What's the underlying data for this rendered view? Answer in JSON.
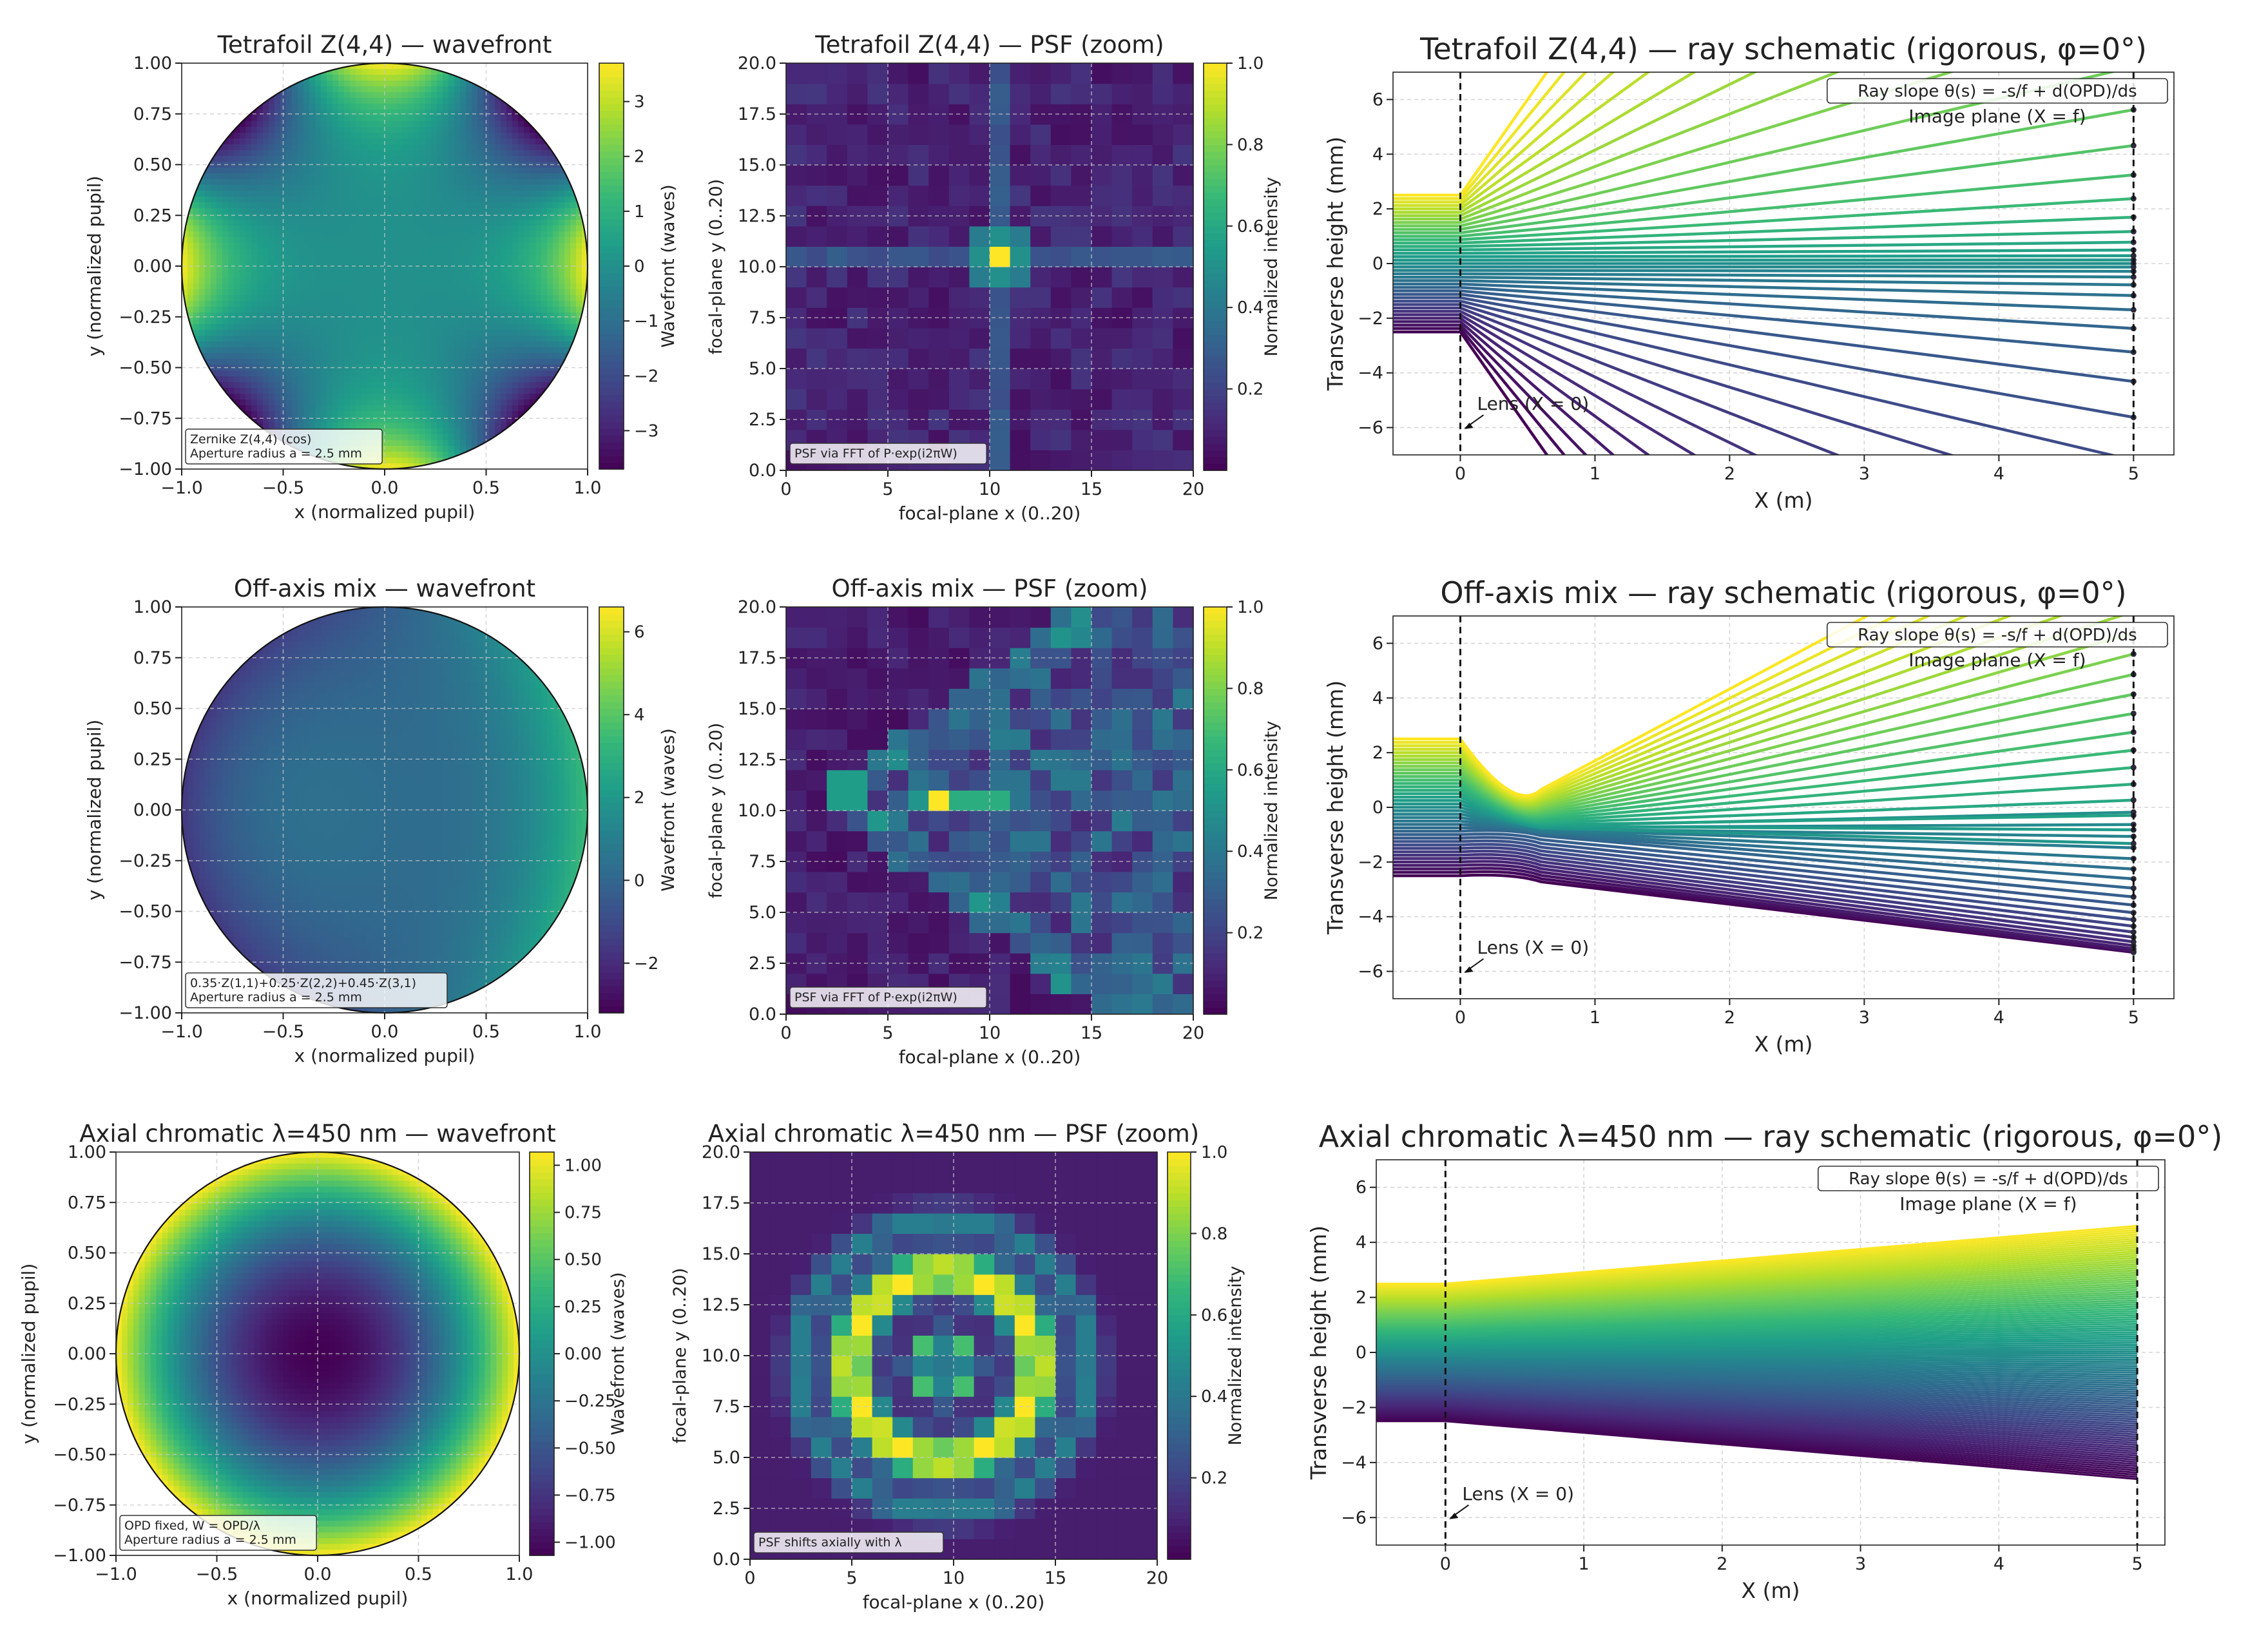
{
  "colormap": "viridis",
  "grid": true,
  "chart_data": [
    {
      "id": "wf1",
      "type": "heatmap",
      "title": "Tetrafoil Z(4,4) — wavefront",
      "xlabel": "x (normalized pupil)",
      "ylabel": "y (normalized pupil)",
      "xlim": [
        -1,
        1
      ],
      "ylim": [
        -1,
        1
      ],
      "xticks": [
        "−1.0",
        "−0.5",
        "0.0",
        "0.5",
        "1.0"
      ],
      "yticks": [
        "−1.00",
        "−0.75",
        "−0.50",
        "−0.25",
        "0.00",
        "0.25",
        "0.50",
        "0.75",
        "1.00"
      ],
      "colorbar_label": "Wavefront (waves)",
      "colorbar_range": [
        -3.7,
        3.7
      ],
      "colorbar_ticks": [
        "3",
        "2",
        "1",
        "0",
        "−1",
        "−2",
        "−3"
      ],
      "colorbar_tick_values": [
        3,
        2,
        1,
        0,
        -1,
        -2,
        -3
      ],
      "note": [
        "Zernike Z(4,4) (cos)",
        "Aperture radius a = 2.5 mm"
      ],
      "model": {
        "kind": "tetrafoil",
        "amplitude": 3.7
      }
    },
    {
      "id": "psf1",
      "type": "heatmap",
      "title": "Tetrafoil Z(4,4) — PSF (zoom)",
      "xlabel": "focal-plane x (0..20)",
      "ylabel": "focal-plane y (0..20)",
      "xlim": [
        0,
        20
      ],
      "ylim": [
        0,
        20
      ],
      "xticks": [
        "0",
        "5",
        "10",
        "15",
        "20"
      ],
      "yticks": [
        "0.0",
        "2.5",
        "5.0",
        "7.5",
        "10.0",
        "12.5",
        "15.0",
        "17.5",
        "20.0"
      ],
      "colorbar_label": "Normalized intensity",
      "colorbar_range": [
        0,
        1
      ],
      "colorbar_ticks": [
        "1.0",
        "0.8",
        "0.6",
        "0.4",
        "0.2"
      ],
      "colorbar_tick_values": [
        1.0,
        0.8,
        0.6,
        0.4,
        0.2
      ],
      "note": [
        "PSF via FFT of P·exp(i2πW)"
      ],
      "model": {
        "kind": "psf_tetrafoil"
      }
    },
    {
      "id": "ray1",
      "type": "line",
      "title": "Tetrafoil Z(4,4) — ray schematic (rigorous, φ=0°)",
      "xlabel": "X (m)",
      "ylabel": "Transverse height (mm)",
      "xlim": [
        -0.5,
        5.3
      ],
      "ylim": [
        -7,
        7
      ],
      "xticks": [
        "0",
        "1",
        "2",
        "3",
        "4",
        "5"
      ],
      "yticks": [
        "6",
        "4",
        "2",
        "0",
        "−2",
        "−4",
        "−6"
      ],
      "ytick_values": [
        6,
        4,
        2,
        0,
        -2,
        -4,
        -6
      ],
      "legend_box": "Ray slope θ(s) = -s/f + d(OPD)/ds",
      "image_plane_label": "Image plane (X = f)",
      "lens_label": "Lens (X = 0)",
      "aperture_mm": 2.5,
      "focal_m": 5,
      "model": {
        "kind": "rays_tetrafoil"
      }
    },
    {
      "id": "wf2",
      "type": "heatmap",
      "title": "Off-axis mix — wavefront",
      "xlabel": "x (normalized pupil)",
      "ylabel": "y (normalized pupil)",
      "xlim": [
        -1,
        1
      ],
      "ylim": [
        -1,
        1
      ],
      "xticks": [
        "−1.0",
        "−0.5",
        "0.0",
        "0.5",
        "1.0"
      ],
      "yticks": [
        "−1.00",
        "−0.75",
        "−0.50",
        "−0.25",
        "0.00",
        "0.25",
        "0.50",
        "0.75",
        "1.00"
      ],
      "colorbar_label": "Wavefront (waves)",
      "colorbar_range": [
        -3.2,
        6.6
      ],
      "colorbar_ticks": [
        "6",
        "4",
        "2",
        "0",
        "−2"
      ],
      "colorbar_tick_values": [
        6,
        4,
        2,
        0,
        -2
      ],
      "note": [
        "0.35·Z(1,1)+0.25·Z(2,2)+0.45·Z(3,1)",
        "Aperture radius a = 2.5 mm"
      ],
      "model": {
        "kind": "offaxis"
      }
    },
    {
      "id": "psf2",
      "type": "heatmap",
      "title": "Off-axis mix — PSF (zoom)",
      "xlabel": "focal-plane x (0..20)",
      "ylabel": "focal-plane y (0..20)",
      "xlim": [
        0,
        20
      ],
      "ylim": [
        0,
        20
      ],
      "xticks": [
        "0",
        "5",
        "10",
        "15",
        "20"
      ],
      "yticks": [
        "0.0",
        "2.5",
        "5.0",
        "7.5",
        "10.0",
        "12.5",
        "15.0",
        "17.5",
        "20.0"
      ],
      "colorbar_label": "Normalized intensity",
      "colorbar_range": [
        0,
        1
      ],
      "colorbar_ticks": [
        "1.0",
        "0.8",
        "0.6",
        "0.4",
        "0.2"
      ],
      "colorbar_tick_values": [
        1.0,
        0.8,
        0.6,
        0.4,
        0.2
      ],
      "note": [
        "PSF via FFT of P·exp(i2πW)"
      ],
      "model": {
        "kind": "psf_offaxis"
      }
    },
    {
      "id": "ray2",
      "type": "line",
      "title": "Off-axis mix — ray schematic (rigorous, φ=0°)",
      "xlabel": "X (m)",
      "ylabel": "Transverse height (mm)",
      "xlim": [
        -0.5,
        5.3
      ],
      "ylim": [
        -7,
        7
      ],
      "xticks": [
        "0",
        "1",
        "2",
        "3",
        "4",
        "5"
      ],
      "yticks": [
        "6",
        "4",
        "2",
        "0",
        "−2",
        "−4",
        "−6"
      ],
      "ytick_values": [
        6,
        4,
        2,
        0,
        -2,
        -4,
        -6
      ],
      "legend_box": "Ray slope θ(s) = -s/f + d(OPD)/ds",
      "image_plane_label": "Image plane (X = f)",
      "lens_label": "Lens (X = 0)",
      "aperture_mm": 2.5,
      "focal_m": 5,
      "model": {
        "kind": "rays_offaxis"
      }
    },
    {
      "id": "wf3",
      "type": "heatmap",
      "title": "Axial chromatic  λ=450 nm — wavefront",
      "xlabel": "x (normalized pupil)",
      "ylabel": "y (normalized pupil)",
      "xlim": [
        -1,
        1
      ],
      "ylim": [
        -1,
        1
      ],
      "xticks": [
        "−1.0",
        "−0.5",
        "0.0",
        "0.5",
        "1.0"
      ],
      "yticks": [
        "−1.00",
        "−0.75",
        "−0.50",
        "−0.25",
        "0.00",
        "0.25",
        "0.50",
        "0.75",
        "1.00"
      ],
      "colorbar_label": "Wavefront (waves)",
      "colorbar_range": [
        -1.07,
        1.07
      ],
      "colorbar_ticks": [
        "1.00",
        "0.75",
        "0.50",
        "0.25",
        "0.00",
        "−0.25",
        "−0.50",
        "−0.75",
        "−1.00"
      ],
      "colorbar_tick_values": [
        1.0,
        0.75,
        0.5,
        0.25,
        0,
        -0.25,
        -0.5,
        -0.75,
        -1.0
      ],
      "note": [
        "OPD fixed, W = OPD/λ",
        "Aperture radius a = 2.5 mm"
      ],
      "model": {
        "kind": "defocus"
      }
    },
    {
      "id": "psf3",
      "type": "heatmap",
      "title": "Axial chromatic  λ=450 nm — PSF (zoom)",
      "xlabel": "focal-plane x (0..20)",
      "ylabel": "focal-plane y (0..20)",
      "xlim": [
        0,
        20
      ],
      "ylim": [
        0,
        20
      ],
      "xticks": [
        "0",
        "5",
        "10",
        "15",
        "20"
      ],
      "yticks": [
        "0.0",
        "2.5",
        "5.0",
        "7.5",
        "10.0",
        "12.5",
        "15.0",
        "17.5",
        "20.0"
      ],
      "colorbar_label": "Normalized intensity",
      "colorbar_range": [
        0,
        1
      ],
      "colorbar_ticks": [
        "1.0",
        "0.8",
        "0.6",
        "0.4",
        "0.2"
      ],
      "colorbar_tick_values": [
        1.0,
        0.8,
        0.6,
        0.4,
        0.2
      ],
      "note": [
        "PSF shifts axially with λ"
      ],
      "model": {
        "kind": "psf_ring"
      }
    },
    {
      "id": "ray3",
      "type": "line",
      "title": "Axial chromatic  λ=450 nm — ray schematic (rigorous, φ=0°)",
      "xlabel": "X (m)",
      "ylabel": "Transverse height (mm)",
      "xlim": [
        -0.5,
        5.2
      ],
      "ylim": [
        -7,
        7
      ],
      "xticks": [
        "0",
        "1",
        "2",
        "3",
        "4",
        "5"
      ],
      "yticks": [
        "6",
        "4",
        "2",
        "0",
        "−2",
        "−4",
        "−6"
      ],
      "ytick_values": [
        6,
        4,
        2,
        0,
        -2,
        -4,
        -6
      ],
      "legend_box": "Ray slope θ(s) = -s/f + d(OPD)/ds",
      "image_plane_label": "Image plane (X = f)",
      "lens_label": "Lens (X = 0)",
      "aperture_mm": 2.5,
      "focal_m": 5,
      "model": {
        "kind": "rays_defocus",
        "exit_mm": 4.6
      }
    }
  ]
}
